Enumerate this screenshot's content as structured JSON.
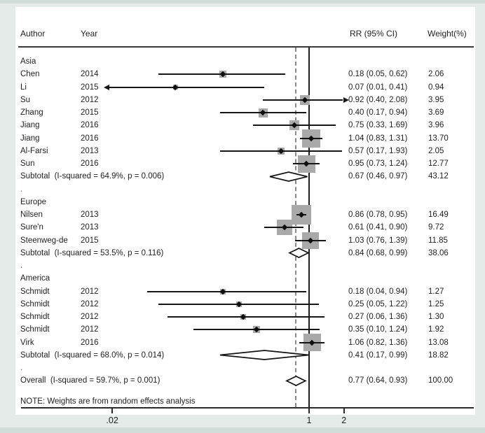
{
  "colors": {
    "background": "#e4ebe8",
    "edge": "#d2dcd8",
    "panel": "#ffffff",
    "square_fill": "#a9a9a9",
    "dashed_line": "#8a8a8a",
    "text": "#1f1f1f"
  },
  "chart_data": {
    "type": "forest",
    "x_scale": "log",
    "columns": [
      "Author",
      "Year",
      "RR (95% CI)",
      "Weight(%)"
    ],
    "null_value": 1,
    "overall_line_value": 0.77,
    "x_ticks": [
      {
        "label": ".02",
        "value": 0.02
      },
      {
        "label": "1",
        "value": 1
      },
      {
        "label": "2",
        "value": 2
      }
    ],
    "separator_dot": ".",
    "note": "NOTE: Weights are from random effects analysis",
    "groups": [
      {
        "name": "Asia",
        "studies": [
          {
            "author": "Chen",
            "year": "2014",
            "rr": 0.18,
            "lo": 0.05,
            "hi": 0.62,
            "weight": 2.06,
            "rr_text": "0.18 (0.05, 0.62)",
            "weight_text": "2.06"
          },
          {
            "author": "Li",
            "year": "2015",
            "rr": 0.07,
            "lo": 0.01,
            "hi": 0.41,
            "weight": 0.94,
            "rr_text": "0.07 (0.01, 0.41)",
            "weight_text": "0.94"
          },
          {
            "author": "Su",
            "year": "2012",
            "rr": 0.92,
            "lo": 0.4,
            "hi": 2.08,
            "weight": 3.95,
            "rr_text": "0.92 (0.40, 2.08)",
            "weight_text": "3.95"
          },
          {
            "author": "Zhang",
            "year": "2015",
            "rr": 0.4,
            "lo": 0.17,
            "hi": 0.94,
            "weight": 3.69,
            "rr_text": "0.40 (0.17, 0.94)",
            "weight_text": "3.69"
          },
          {
            "author": "Jiang",
            "year": "2016",
            "rr": 0.75,
            "lo": 0.33,
            "hi": 1.69,
            "weight": 3.96,
            "rr_text": "0.75 (0.33, 1.69)",
            "weight_text": "3.96"
          },
          {
            "author": "Jiang",
            "year": "2016",
            "rr": 1.04,
            "lo": 0.83,
            "hi": 1.31,
            "weight": 13.7,
            "rr_text": "1.04 (0.83, 1.31)",
            "weight_text": "13.70"
          },
          {
            "author": "Al-Farsi",
            "year": "2013",
            "rr": 0.57,
            "lo": 0.17,
            "hi": 1.93,
            "weight": 2.05,
            "rr_text": "0.57 (0.17, 1.93)",
            "weight_text": "2.05"
          },
          {
            "author": "Sun",
            "year": "2016",
            "rr": 0.95,
            "lo": 0.73,
            "hi": 1.24,
            "weight": 12.77,
            "rr_text": "0.95 (0.73, 1.24)",
            "weight_text": "12.77"
          }
        ],
        "subtotal": {
          "label": "Subtotal  (I-squared = 64.9%, p = 0.006)",
          "rr": 0.67,
          "lo": 0.46,
          "hi": 0.97,
          "rr_text": "0.67 (0.46, 0.97)",
          "weight_text": "43.12"
        }
      },
      {
        "name": "Europe",
        "studies": [
          {
            "author": "Nilsen",
            "year": "2013",
            "rr": 0.86,
            "lo": 0.78,
            "hi": 0.95,
            "weight": 16.49,
            "rr_text": "0.86 (0.78, 0.95)",
            "weight_text": "16.49"
          },
          {
            "author": "Sure'n",
            "year": "2013",
            "rr": 0.61,
            "lo": 0.41,
            "hi": 0.9,
            "weight": 9.72,
            "rr_text": "0.61 (0.41, 0.90)",
            "weight_text": "9.72"
          },
          {
            "author": "Steenweg-de",
            "year": "2015",
            "rr": 1.03,
            "lo": 0.76,
            "hi": 1.39,
            "weight": 11.85,
            "rr_text": "1.03 (0.76, 1.39)",
            "weight_text": "11.85"
          }
        ],
        "subtotal": {
          "label": "Subtotal  (I-squared = 53.5%, p = 0.116)",
          "rr": 0.84,
          "lo": 0.68,
          "hi": 0.99,
          "rr_text": "0.84 (0.68, 0.99)",
          "weight_text": "38.06"
        }
      },
      {
        "name": "America",
        "studies": [
          {
            "author": "Schmidt",
            "year": "2012",
            "rr": 0.18,
            "lo": 0.04,
            "hi": 0.94,
            "weight": 1.27,
            "rr_text": "0.18 (0.04, 0.94)",
            "weight_text": "1.27"
          },
          {
            "author": "Schmidt",
            "year": "2012",
            "rr": 0.25,
            "lo": 0.05,
            "hi": 1.22,
            "weight": 1.25,
            "rr_text": "0.25 (0.05, 1.22)",
            "weight_text": "1.25"
          },
          {
            "author": "Schmidt",
            "year": "2012",
            "rr": 0.27,
            "lo": 0.06,
            "hi": 1.36,
            "weight": 1.3,
            "rr_text": "0.27 (0.06, 1.36)",
            "weight_text": "1.30"
          },
          {
            "author": "Schmidt",
            "year": "2012",
            "rr": 0.35,
            "lo": 0.1,
            "hi": 1.24,
            "weight": 1.92,
            "rr_text": "0.35 (0.10, 1.24)",
            "weight_text": "1.92"
          },
          {
            "author": "Virk",
            "year": "2016",
            "rr": 1.06,
            "lo": 0.82,
            "hi": 1.36,
            "weight": 13.08,
            "rr_text": "1.06 (0.82, 1.36)",
            "weight_text": "13.08"
          }
        ],
        "subtotal": {
          "label": "Subtotal  (I-squared = 68.0%, p = 0.014)",
          "rr": 0.41,
          "lo": 0.17,
          "hi": 0.99,
          "rr_text": "0.41 (0.17, 0.99)",
          "weight_text": "18.82"
        }
      }
    ],
    "overall": {
      "label": "Overall  (I-squared = 59.7%, p = 0.001)",
      "rr": 0.77,
      "lo": 0.64,
      "hi": 0.93,
      "rr_text": "0.77 (0.64, 0.93)",
      "weight_text": "100.00"
    }
  }
}
